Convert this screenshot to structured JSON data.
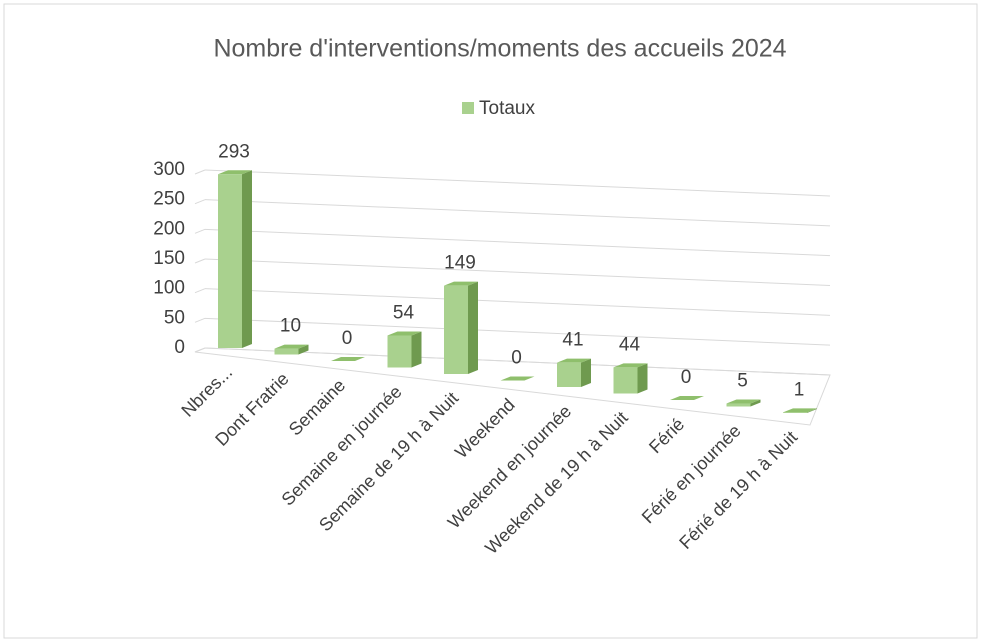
{
  "chart_data": {
    "type": "bar3d",
    "title": "Nombre d'interventions/moments des accueils 2024",
    "categories": [
      "Nbres...",
      "Dont Fratrie",
      "Semaine",
      "Semaine en journée",
      "Semaine de 19 h à Nuit",
      "Weekend",
      "Weekend en journée",
      "Weekend de 19 h à Nuit",
      "Férié",
      "Férié en journée",
      "Férié de 19 h à Nuit"
    ],
    "series": [
      {
        "name": "Totaux",
        "color": "#a9d18e",
        "values": [
          293,
          10,
          0,
          54,
          149,
          0,
          41,
          44,
          0,
          5,
          1
        ]
      }
    ],
    "ylim": [
      0,
      300
    ],
    "yticks": [
      0,
      50,
      100,
      150,
      200,
      250,
      300
    ],
    "grid": true,
    "legend": "top"
  }
}
